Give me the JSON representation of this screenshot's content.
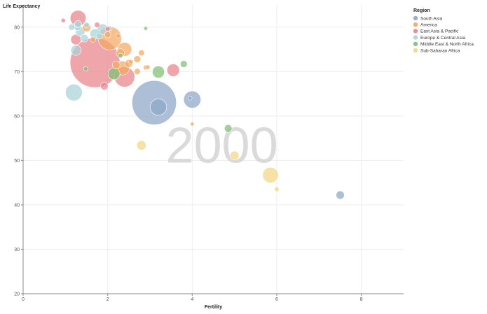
{
  "chart_data": {
    "type": "scatter",
    "xlabel": "Fertility",
    "ylabel": "Life Expectancy",
    "xlim": [
      0,
      9
    ],
    "ylim": [
      20,
      85
    ],
    "xticks": [
      "0",
      "2",
      "4",
      "6",
      "8"
    ],
    "xtick_values": [
      0,
      2,
      4,
      6,
      8
    ],
    "yticks": [
      "20",
      "30",
      "40",
      "50",
      "60",
      "70",
      "80"
    ],
    "ytick_values": [
      20,
      30,
      40,
      50,
      60,
      70,
      80
    ],
    "grid": true,
    "year": "2000",
    "legend_title": "Region",
    "legend_position": "top-right",
    "regions": [
      {
        "key": "south_asia",
        "label": "South Asia",
        "color": "#8ea6c6"
      },
      {
        "key": "america",
        "label": "America",
        "color": "#f4a762"
      },
      {
        "key": "east_asia",
        "label": "East Asia & Pacific",
        "color": "#e8838a"
      },
      {
        "key": "europe",
        "label": "Europe & Central Asia",
        "color": "#a9d3d8"
      },
      {
        "key": "mena",
        "label": "Middle East & North Africa",
        "color": "#7fbf72"
      },
      {
        "key": "ssa",
        "label": "Sub-Saharan Africa",
        "color": "#f3d784"
      }
    ],
    "points": [
      {
        "region": "east_asia",
        "x": 1.7,
        "y": 72.0,
        "size": 1260
      },
      {
        "region": "south_asia",
        "x": 3.1,
        "y": 63.0,
        "size": 1000
      },
      {
        "region": "east_asia",
        "x": 2.4,
        "y": 68.8,
        "size": 210
      },
      {
        "region": "america",
        "x": 2.05,
        "y": 77.5,
        "size": 280
      },
      {
        "region": "south_asia",
        "x": 3.2,
        "y": 62.0,
        "size": 140
      },
      {
        "region": "south_asia",
        "x": 4.0,
        "y": 63.7,
        "size": 150
      },
      {
        "region": "ssa",
        "x": 5.85,
        "y": 46.7,
        "size": 125
      },
      {
        "region": "east_asia",
        "x": 1.3,
        "y": 82.0,
        "size": 127
      },
      {
        "region": "america",
        "x": 2.4,
        "y": 75.0,
        "size": 100
      },
      {
        "region": "america",
        "x": 2.35,
        "y": 70.8,
        "size": 100
      },
      {
        "region": "east_asia",
        "x": 3.55,
        "y": 70.3,
        "size": 80
      },
      {
        "region": "mena",
        "x": 3.2,
        "y": 69.9,
        "size": 75
      },
      {
        "region": "mena",
        "x": 2.15,
        "y": 69.5,
        "size": 72
      },
      {
        "region": "europe",
        "x": 1.2,
        "y": 65.3,
        "size": 144
      },
      {
        "region": "europe",
        "x": 1.88,
        "y": 79.5,
        "size": 60
      },
      {
        "region": "europe",
        "x": 1.7,
        "y": 78.5,
        "size": 50
      },
      {
        "region": "europe",
        "x": 1.35,
        "y": 79.0,
        "size": 45
      },
      {
        "region": "europe",
        "x": 1.28,
        "y": 80.2,
        "size": 35
      },
      {
        "region": "europe",
        "x": 1.45,
        "y": 77.5,
        "size": 30
      },
      {
        "region": "europe",
        "x": 1.25,
        "y": 74.8,
        "size": 55
      },
      {
        "region": "europe",
        "x": 1.3,
        "y": 80.7,
        "size": 25
      },
      {
        "region": "europe",
        "x": 1.15,
        "y": 80.0,
        "size": 20
      },
      {
        "region": "europe",
        "x": 1.5,
        "y": 80.5,
        "size": 15
      },
      {
        "region": "europe",
        "x": 1.8,
        "y": 78.0,
        "size": 20
      },
      {
        "region": "europe",
        "x": 2.05,
        "y": 79.7,
        "size": 12
      },
      {
        "region": "east_asia",
        "x": 1.25,
        "y": 77.2,
        "size": 55
      },
      {
        "region": "east_asia",
        "x": 1.75,
        "y": 80.5,
        "size": 15
      },
      {
        "region": "east_asia",
        "x": 0.95,
        "y": 81.5,
        "size": 10
      },
      {
        "region": "east_asia",
        "x": 1.92,
        "y": 66.7,
        "size": 30
      },
      {
        "region": "east_asia",
        "x": 2.0,
        "y": 79.6,
        "size": 12
      },
      {
        "region": "america",
        "x": 1.5,
        "y": 79.9,
        "size": 35
      },
      {
        "region": "america",
        "x": 2.0,
        "y": 78.3,
        "size": 20
      },
      {
        "region": "america",
        "x": 2.3,
        "y": 74.2,
        "size": 35
      },
      {
        "region": "america",
        "x": 2.2,
        "y": 71.5,
        "size": 30
      },
      {
        "region": "america",
        "x": 2.5,
        "y": 71.8,
        "size": 32
      },
      {
        "region": "america",
        "x": 2.7,
        "y": 70.0,
        "size": 20
      },
      {
        "region": "america",
        "x": 2.8,
        "y": 74.2,
        "size": 18
      },
      {
        "region": "america",
        "x": 2.7,
        "y": 72.8,
        "size": 25
      },
      {
        "region": "america",
        "x": 2.9,
        "y": 70.9,
        "size": 12
      },
      {
        "region": "america",
        "x": 2.95,
        "y": 71.0,
        "size": 10
      },
      {
        "region": "america",
        "x": 1.65,
        "y": 77.2,
        "size": 15
      },
      {
        "region": "america",
        "x": 2.25,
        "y": 78.0,
        "size": 10
      },
      {
        "region": "america",
        "x": 2.55,
        "y": 72.2,
        "size": 10
      },
      {
        "region": "america",
        "x": 4.0,
        "y": 58.2,
        "size": 8
      },
      {
        "region": "mena",
        "x": 2.9,
        "y": 79.7,
        "size": 8
      },
      {
        "region": "mena",
        "x": 3.8,
        "y": 71.7,
        "size": 25
      },
      {
        "region": "mena",
        "x": 4.85,
        "y": 57.2,
        "size": 30
      },
      {
        "region": "mena",
        "x": 2.3,
        "y": 73.6,
        "size": 12
      },
      {
        "region": "mena",
        "x": 1.48,
        "y": 70.6,
        "size": 10
      },
      {
        "region": "ssa",
        "x": 2.8,
        "y": 53.4,
        "size": 45
      },
      {
        "region": "ssa",
        "x": 5.0,
        "y": 51.1,
        "size": 40
      },
      {
        "region": "ssa",
        "x": 6.0,
        "y": 43.5,
        "size": 12
      },
      {
        "region": "south_asia",
        "x": 7.5,
        "y": 42.2,
        "size": 35
      },
      {
        "region": "south_asia",
        "x": 3.95,
        "y": 64.0,
        "size": 8
      }
    ]
  }
}
